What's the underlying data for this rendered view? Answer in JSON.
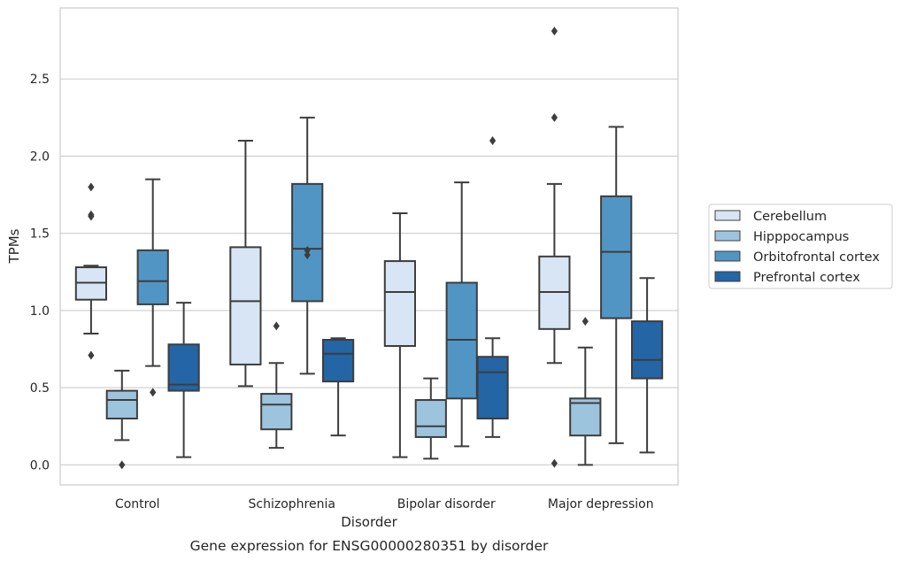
{
  "chart_data": {
    "type": "box",
    "title": "Gene expression for ENSG00000280351 by disorder",
    "xlabel": "Disorder",
    "ylabel": "TPMs",
    "ylim": [
      -0.13,
      2.96
    ],
    "yticks": [
      "0.0",
      "0.5",
      "1.0",
      "1.5",
      "2.0",
      "2.5"
    ],
    "grid": "horizontal",
    "legend_position": "right",
    "categories": [
      "Control",
      "Schizophrenia",
      "Bipolar disorder",
      "Major depression"
    ],
    "series": [
      {
        "name": "Cerebellum",
        "color": "#d7e5f4",
        "boxes": [
          {
            "q1": 1.07,
            "median": 1.18,
            "q3": 1.28,
            "whisker_low": 0.85,
            "whisker_high": 1.29,
            "outliers": [
              1.8,
              1.62,
              1.61,
              0.71
            ]
          },
          {
            "q1": 0.65,
            "median": 1.06,
            "q3": 1.41,
            "whisker_low": 0.51,
            "whisker_high": 2.1,
            "outliers": []
          },
          {
            "q1": 0.77,
            "median": 1.12,
            "q3": 1.32,
            "whisker_low": 0.05,
            "whisker_high": 1.63,
            "outliers": []
          },
          {
            "q1": 0.88,
            "median": 1.12,
            "q3": 1.35,
            "whisker_low": 0.66,
            "whisker_high": 1.82,
            "outliers": [
              2.81,
              2.25,
              0.01
            ]
          }
        ]
      },
      {
        "name": "Hipppocampus",
        "color": "#9dc4dd",
        "boxes": [
          {
            "q1": 0.3,
            "median": 0.42,
            "q3": 0.48,
            "whisker_low": 0.16,
            "whisker_high": 0.61,
            "outliers": [
              0.0
            ]
          },
          {
            "q1": 0.23,
            "median": 0.39,
            "q3": 0.46,
            "whisker_low": 0.11,
            "whisker_high": 0.66,
            "outliers": [
              0.9
            ]
          },
          {
            "q1": 0.18,
            "median": 0.25,
            "q3": 0.42,
            "whisker_low": 0.04,
            "whisker_high": 0.56,
            "outliers": []
          },
          {
            "q1": 0.19,
            "median": 0.4,
            "q3": 0.43,
            "whisker_low": 0.0,
            "whisker_high": 0.76,
            "outliers": [
              0.93
            ]
          }
        ]
      },
      {
        "name": "Orbitofrontal cortex",
        "color": "#5195c4",
        "boxes": [
          {
            "q1": 1.04,
            "median": 1.19,
            "q3": 1.39,
            "whisker_low": 0.64,
            "whisker_high": 1.85,
            "outliers": [
              0.47
            ]
          },
          {
            "q1": 1.06,
            "median": 1.4,
            "q3": 1.82,
            "whisker_low": 0.59,
            "whisker_high": 2.25,
            "outliers": [
              1.39,
              1.36
            ]
          },
          {
            "q1": 0.43,
            "median": 0.81,
            "q3": 1.18,
            "whisker_low": 0.12,
            "whisker_high": 1.83,
            "outliers": []
          },
          {
            "q1": 0.95,
            "median": 1.38,
            "q3": 1.74,
            "whisker_low": 0.14,
            "whisker_high": 2.19,
            "outliers": []
          }
        ]
      },
      {
        "name": "Prefrontal cortex",
        "color": "#2465a5",
        "boxes": [
          {
            "q1": 0.48,
            "median": 0.52,
            "q3": 0.78,
            "whisker_low": 0.05,
            "whisker_high": 1.05,
            "outliers": []
          },
          {
            "q1": 0.54,
            "median": 0.72,
            "q3": 0.81,
            "whisker_low": 0.19,
            "whisker_high": 0.82,
            "outliers": []
          },
          {
            "q1": 0.3,
            "median": 0.6,
            "q3": 0.7,
            "whisker_low": 0.18,
            "whisker_high": 0.82,
            "outliers": [
              2.1
            ]
          },
          {
            "q1": 0.56,
            "median": 0.68,
            "q3": 0.93,
            "whisker_low": 0.08,
            "whisker_high": 1.21,
            "outliers": []
          }
        ]
      }
    ]
  }
}
